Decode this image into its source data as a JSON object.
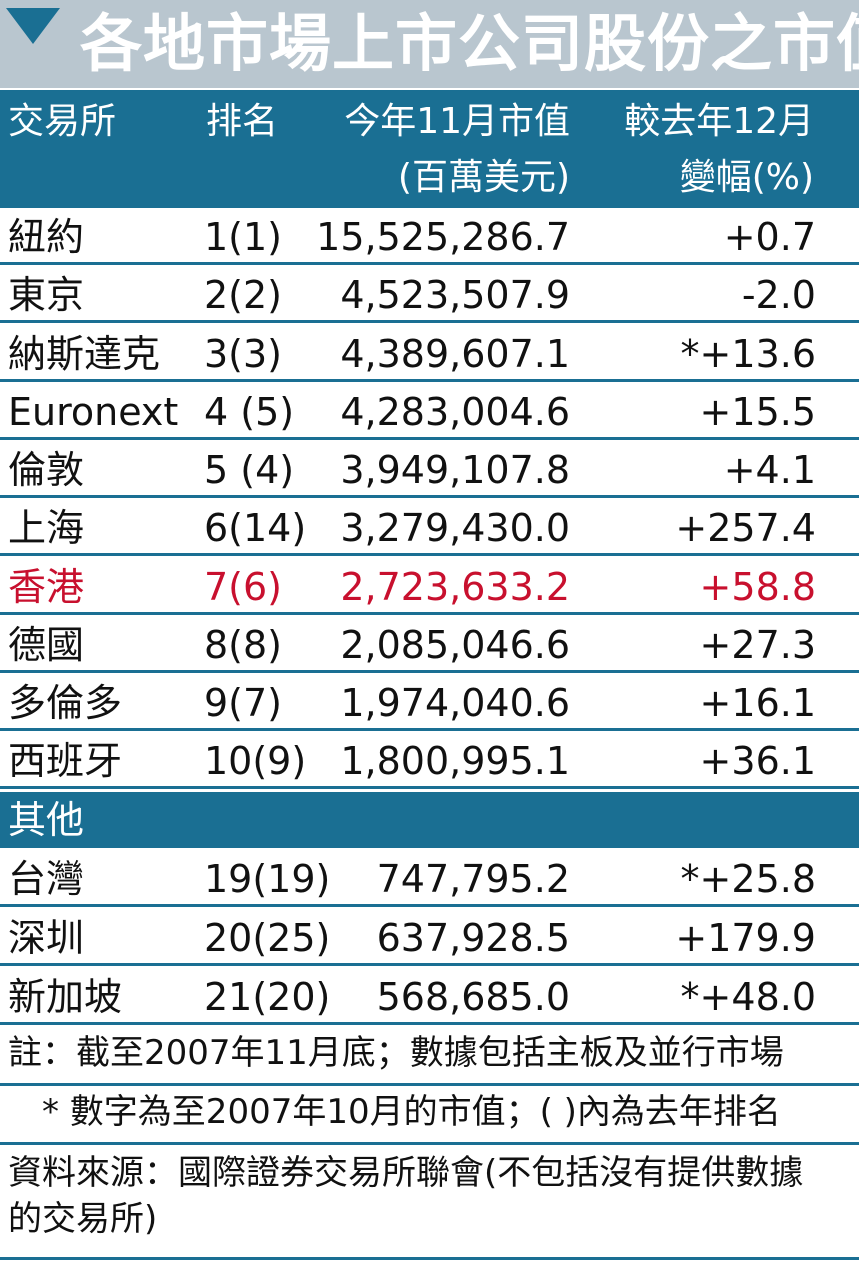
{
  "title": "各地市場上市公司股份之市值",
  "headers": {
    "exchange": "交易所",
    "rank": "排名",
    "market_value_line1": "今年11月市值",
    "market_value_line2": "(百萬美元)",
    "change_line1": "較去年12月",
    "change_line2": "變幅(%)"
  },
  "rows": [
    {
      "exchange": "紐約",
      "rank": "1(1)",
      "market_value": "15,525,286.7",
      "change": "+0.7"
    },
    {
      "exchange": "東京",
      "rank": "2(2)",
      "market_value": "4,523,507.9",
      "change": "-2.0"
    },
    {
      "exchange": "納斯達克",
      "rank": "3(3)",
      "market_value": "4,389,607.1",
      "change": "*+13.6"
    },
    {
      "exchange": "Euronext",
      "rank": "4 (5)",
      "market_value": "4,283,004.6",
      "change": "+15.5"
    },
    {
      "exchange": "倫敦",
      "rank": "5 (4)",
      "market_value": "3,949,107.8",
      "change": "+4.1"
    },
    {
      "exchange": "上海",
      "rank": "6(14)",
      "market_value": "3,279,430.0",
      "change": "+257.4"
    },
    {
      "exchange": "香港",
      "rank": "7(6)",
      "market_value": "2,723,633.2",
      "change": "+58.8"
    },
    {
      "exchange": "德國",
      "rank": "8(8)",
      "market_value": "2,085,046.6",
      "change": "+27.3"
    },
    {
      "exchange": "多倫多",
      "rank": "9(7)",
      "market_value": "1,974,040.6",
      "change": "+16.1"
    },
    {
      "exchange": "西班牙",
      "rank": "10(9)",
      "market_value": "1,800,995.1",
      "change": "+36.1"
    }
  ],
  "others_label": "其他",
  "other_rows": [
    {
      "exchange": "台灣",
      "rank": "19(19)",
      "market_value": "747,795.2",
      "change": "*+25.8"
    },
    {
      "exchange": "深圳",
      "rank": "20(25)",
      "market_value": "637,928.5",
      "change": "+179.9"
    },
    {
      "exchange": "新加坡",
      "rank": "21(20)",
      "market_value": "568,685.0",
      "change": "*+48.0"
    }
  ],
  "notes": {
    "note1": "註：截至2007年11月底；數據包括主板及並行市場",
    "note2": "* 數字為至2007年10月的市值；( )內為去年排名",
    "source_line1": "資料來源：國際證券交易所聯會(不包括沒有提供數據",
    "source_line2": "的交易所)"
  },
  "colors": {
    "header_blue": "#1a6f93",
    "title_gray": "#b9c6cf",
    "highlight_red": "#c8102e"
  }
}
